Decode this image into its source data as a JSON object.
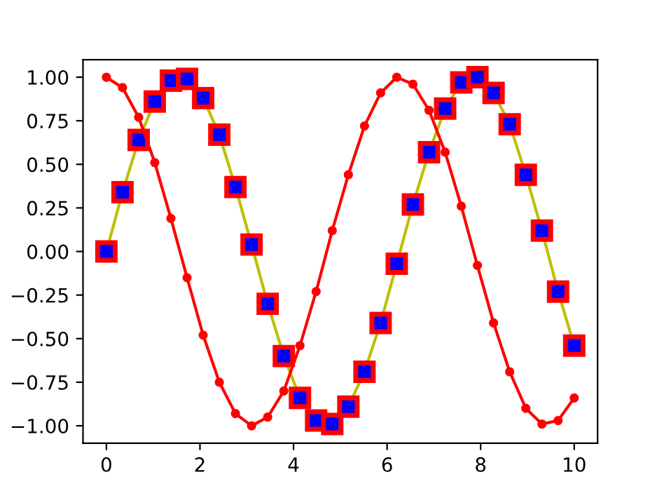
{
  "chart_data": {
    "type": "line",
    "x": [
      0,
      0.345,
      0.69,
      1.034,
      1.379,
      1.724,
      2.069,
      2.414,
      2.759,
      3.103,
      3.448,
      3.793,
      4.138,
      4.483,
      4.828,
      5.172,
      5.517,
      5.862,
      6.207,
      6.552,
      6.897,
      7.241,
      7.586,
      7.931,
      8.276,
      8.621,
      8.966,
      9.31,
      9.655,
      10
    ],
    "series": [
      {
        "color": "#bfbf00",
        "marker": "square",
        "values": [
          0.0,
          0.34,
          0.64,
          0.86,
          0.98,
          0.99,
          0.88,
          0.67,
          0.37,
          0.04,
          -0.3,
          -0.6,
          -0.84,
          -0.97,
          -0.99,
          -0.89,
          -0.69,
          -0.41,
          -0.07,
          0.27,
          0.57,
          0.82,
          0.97,
          1.0,
          0.91,
          0.73,
          0.44,
          0.12,
          -0.23,
          -0.54
        ]
      },
      {
        "color": "#ff0000",
        "marker": "circle",
        "values": [
          1.0,
          0.94,
          0.77,
          0.51,
          0.19,
          -0.15,
          -0.48,
          -0.75,
          -0.93,
          -1.0,
          -0.95,
          -0.8,
          -0.54,
          -0.23,
          0.12,
          0.44,
          0.72,
          0.91,
          1.0,
          0.96,
          0.81,
          0.57,
          0.26,
          -0.08,
          -0.41,
          -0.69,
          -0.9,
          -0.99,
          -0.97,
          -0.84
        ]
      }
    ],
    "xlim": [
      -0.5,
      10.5
    ],
    "ylim": [
      -1.1,
      1.1
    ],
    "xticks": [
      0,
      2,
      4,
      6,
      8,
      10
    ],
    "yticks": [
      {
        "value": -1,
        "label": "−1.00"
      },
      {
        "value": -0.75,
        "label": "−0.75"
      },
      {
        "value": -0.5,
        "label": "−0.50"
      },
      {
        "value": -0.25,
        "label": "−0.25"
      },
      {
        "value": 0,
        "label": "0.00"
      },
      {
        "value": 0.25,
        "label": "0.25"
      },
      {
        "value": 0.5,
        "label": "0.50"
      },
      {
        "value": 0.75,
        "label": "0.75"
      },
      {
        "value": 1,
        "label": "1.00"
      }
    ],
    "grid": false
  }
}
